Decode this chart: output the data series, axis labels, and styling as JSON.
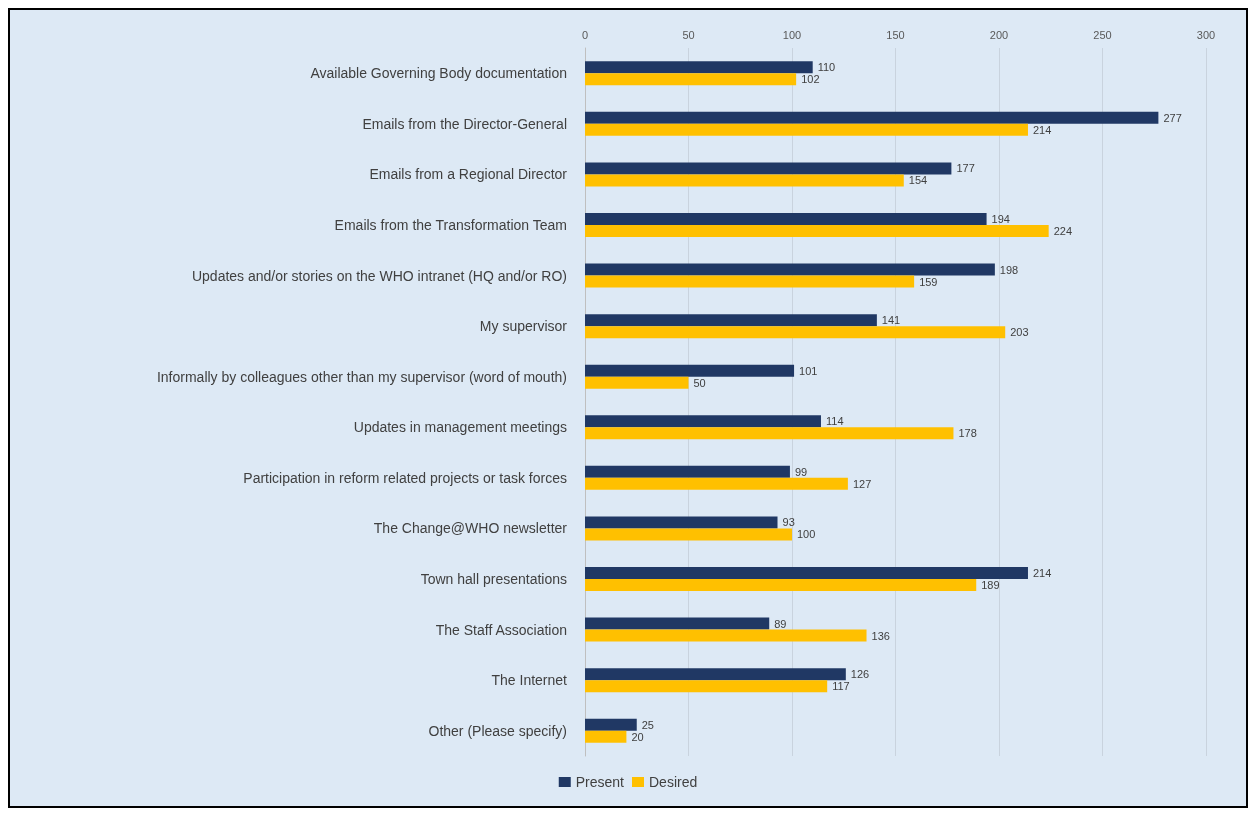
{
  "chart_data": {
    "type": "bar",
    "orientation": "horizontal",
    "categories": [
      "Available Governing Body documentation",
      "Emails from the Director-General",
      "Emails from a Regional Director",
      "Emails from the Transformation Team",
      "Updates and/or stories on the WHO intranet (HQ and/or RO)",
      "My supervisor",
      "Informally by colleagues other than my supervisor (word of mouth)",
      "Updates in management meetings",
      "Participation in reform related projects or task forces",
      "The Change@WHO newsletter",
      "Town hall presentations",
      "The Staff Association",
      "The Internet",
      "Other (Please specify)"
    ],
    "series": [
      {
        "name": "Present",
        "color": "#203864",
        "values": [
          110,
          277,
          177,
          194,
          198,
          141,
          101,
          114,
          99,
          93,
          214,
          89,
          126,
          25
        ]
      },
      {
        "name": "Desired",
        "color": "#ffc000",
        "values": [
          102,
          214,
          154,
          224,
          159,
          203,
          50,
          178,
          127,
          100,
          189,
          136,
          117,
          20
        ]
      }
    ],
    "xlim": [
      0,
      300
    ],
    "xticks": [
      0,
      50,
      100,
      150,
      200,
      250,
      300
    ],
    "grid": "x",
    "data_labels": true,
    "legend": "bottom"
  }
}
